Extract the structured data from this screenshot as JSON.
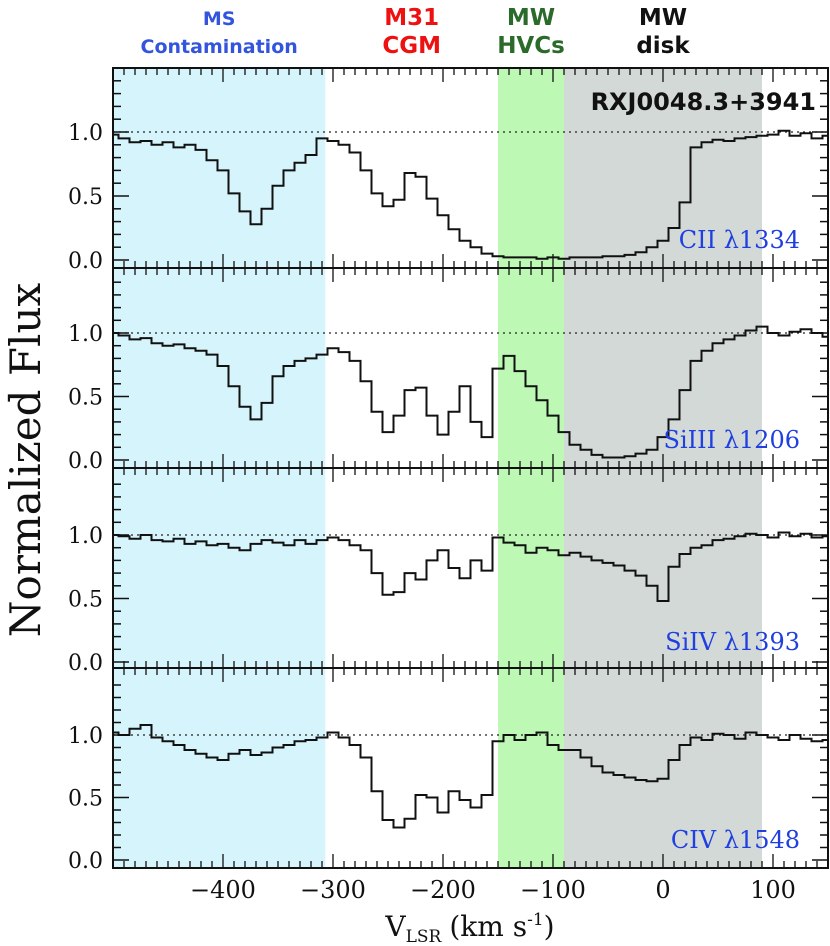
{
  "chart_data": {
    "type": "line",
    "style": "histogram-step",
    "object": "RXJ0048.3+3941",
    "ylabel": "Normalized Flux",
    "xlabel_main": "V",
    "xlabel_sub": "LSR",
    "xlabel_units": "(km s",
    "xlabel_exp": "-1",
    "xlabel_close": ")",
    "xlim": [
      -500,
      150
    ],
    "ylim": [
      -0.05,
      1.5
    ],
    "xticks": [
      -400,
      -300,
      -200,
      -100,
      0,
      100
    ],
    "xtick_labels": [
      "−400",
      "−300",
      "−200",
      "−100",
      "0",
      "100"
    ],
    "yticks": [
      0.0,
      0.5,
      1.0
    ],
    "ytick_labels": [
      "0.0",
      "0.5",
      "1.0"
    ],
    "continuum_level": 1.0,
    "regions": [
      {
        "label_lines": [
          "MS",
          "Contamination"
        ],
        "vmin": -500,
        "vmax": -307,
        "fill": "#d6f4fb",
        "label_color": "#3355dd"
      },
      {
        "label_lines": [
          "M31",
          "CGM"
        ],
        "vmin": -307,
        "vmax": -150,
        "fill": "#ffffff",
        "label_color": "#ee1111"
      },
      {
        "label_lines": [
          "MW",
          "HVCs"
        ],
        "vmin": -150,
        "vmax": -90,
        "fill": "#bdf8b5",
        "label_color": "#2a6a2a"
      },
      {
        "label_lines": [
          "MW",
          "disk"
        ],
        "vmin": -90,
        "vmax": 90,
        "fill": "#d3d9d7",
        "label_color": "#111111"
      }
    ],
    "absorption_fill_color": "#ff1a0a",
    "absorption_fill_range": [
      -307,
      -150
    ],
    "line_color": "#111111",
    "series": [
      {
        "name": "CII λ1334",
        "v": [
          -500,
          -490,
          -480,
          -470,
          -460,
          -450,
          -440,
          -430,
          -420,
          -410,
          -400,
          -390,
          -380,
          -370,
          -360,
          -350,
          -340,
          -330,
          -320,
          -310,
          -300,
          -290,
          -280,
          -270,
          -260,
          -250,
          -240,
          -230,
          -220,
          -210,
          -200,
          -190,
          -180,
          -170,
          -160,
          -150,
          -140,
          -130,
          -120,
          -110,
          -100,
          -90,
          -80,
          -70,
          -60,
          -50,
          -40,
          -30,
          -20,
          -10,
          0,
          10,
          20,
          30,
          40,
          50,
          60,
          70,
          80,
          90,
          100,
          110,
          120,
          130,
          140,
          150
        ],
        "flux": [
          0.98,
          0.95,
          0.92,
          0.93,
          0.9,
          0.92,
          0.88,
          0.9,
          0.86,
          0.78,
          0.7,
          0.52,
          0.38,
          0.28,
          0.4,
          0.58,
          0.7,
          0.76,
          0.82,
          0.95,
          0.93,
          0.9,
          0.84,
          0.7,
          0.52,
          0.42,
          0.47,
          0.68,
          0.65,
          0.48,
          0.35,
          0.24,
          0.15,
          0.1,
          0.05,
          0.03,
          0.02,
          0.02,
          0.02,
          0.01,
          0.02,
          0.01,
          0.02,
          0.02,
          0.02,
          0.03,
          0.03,
          0.04,
          0.06,
          0.1,
          0.15,
          0.25,
          0.45,
          0.88,
          0.92,
          0.94,
          0.93,
          0.95,
          0.96,
          0.97,
          0.98,
          1.01,
          0.97,
          0.99,
          0.95,
          0.97
        ]
      },
      {
        "name": "SiIII λ1206",
        "v": [
          -500,
          -490,
          -480,
          -470,
          -460,
          -450,
          -440,
          -430,
          -420,
          -410,
          -400,
          -390,
          -380,
          -370,
          -360,
          -350,
          -340,
          -330,
          -320,
          -310,
          -300,
          -290,
          -280,
          -270,
          -260,
          -250,
          -240,
          -230,
          -220,
          -210,
          -200,
          -190,
          -180,
          -170,
          -160,
          -150,
          -140,
          -130,
          -120,
          -110,
          -100,
          -90,
          -80,
          -70,
          -60,
          -50,
          -40,
          -30,
          -20,
          -10,
          0,
          10,
          20,
          30,
          40,
          50,
          60,
          70,
          80,
          90,
          100,
          110,
          120,
          130,
          140,
          150
        ],
        "flux": [
          1.0,
          0.98,
          0.95,
          0.96,
          0.92,
          0.9,
          0.91,
          0.88,
          0.86,
          0.83,
          0.74,
          0.58,
          0.42,
          0.32,
          0.45,
          0.66,
          0.74,
          0.78,
          0.8,
          0.83,
          0.88,
          0.85,
          0.78,
          0.62,
          0.38,
          0.22,
          0.35,
          0.55,
          0.57,
          0.35,
          0.2,
          0.38,
          0.58,
          0.3,
          0.18,
          0.72,
          0.82,
          0.7,
          0.58,
          0.47,
          0.35,
          0.22,
          0.12,
          0.08,
          0.04,
          0.02,
          0.02,
          0.03,
          0.05,
          0.08,
          0.18,
          0.32,
          0.55,
          0.78,
          0.86,
          0.92,
          0.95,
          0.98,
          1.02,
          1.05,
          1.0,
          0.98,
          1.01,
          1.03,
          1.0,
          0.97
        ]
      },
      {
        "name": "SiIV λ1393",
        "v": [
          -500,
          -490,
          -480,
          -470,
          -460,
          -450,
          -440,
          -430,
          -420,
          -410,
          -400,
          -390,
          -380,
          -370,
          -360,
          -350,
          -340,
          -330,
          -320,
          -310,
          -300,
          -290,
          -280,
          -270,
          -260,
          -250,
          -240,
          -230,
          -220,
          -210,
          -200,
          -190,
          -180,
          -170,
          -160,
          -150,
          -140,
          -130,
          -120,
          -110,
          -100,
          -90,
          -80,
          -70,
          -60,
          -50,
          -40,
          -30,
          -20,
          -10,
          0,
          10,
          20,
          30,
          40,
          50,
          60,
          70,
          80,
          90,
          100,
          110,
          120,
          130,
          140,
          150
        ],
        "flux": [
          1.0,
          0.99,
          0.97,
          1.0,
          0.96,
          0.95,
          0.97,
          0.93,
          0.95,
          0.92,
          0.93,
          0.9,
          0.88,
          0.93,
          0.96,
          0.94,
          0.92,
          0.96,
          0.93,
          0.96,
          0.98,
          0.96,
          0.92,
          0.88,
          0.7,
          0.53,
          0.55,
          0.7,
          0.65,
          0.8,
          0.88,
          0.74,
          0.66,
          0.8,
          0.72,
          0.98,
          0.94,
          0.92,
          0.86,
          0.9,
          0.88,
          0.84,
          0.86,
          0.83,
          0.8,
          0.78,
          0.76,
          0.72,
          0.68,
          0.6,
          0.48,
          0.75,
          0.85,
          0.9,
          0.92,
          0.96,
          0.97,
          0.99,
          1.01,
          1.0,
          0.98,
          1.02,
          0.99,
          1.01,
          0.98,
          0.99
        ]
      },
      {
        "name": "CIV λ1548",
        "v": [
          -500,
          -490,
          -480,
          -470,
          -460,
          -450,
          -440,
          -430,
          -420,
          -410,
          -400,
          -390,
          -380,
          -370,
          -360,
          -350,
          -340,
          -330,
          -320,
          -310,
          -300,
          -290,
          -280,
          -270,
          -260,
          -250,
          -240,
          -230,
          -220,
          -210,
          -200,
          -190,
          -180,
          -170,
          -160,
          -150,
          -140,
          -130,
          -120,
          -110,
          -100,
          -90,
          -80,
          -70,
          -60,
          -50,
          -40,
          -30,
          -20,
          -10,
          0,
          10,
          20,
          30,
          40,
          50,
          60,
          70,
          80,
          90,
          100,
          110,
          120,
          130,
          140,
          150
        ],
        "flux": [
          1.02,
          1.0,
          1.05,
          1.08,
          0.98,
          0.95,
          0.92,
          0.88,
          0.85,
          0.82,
          0.8,
          0.85,
          0.88,
          0.84,
          0.86,
          0.9,
          0.92,
          0.95,
          0.96,
          0.98,
          1.02,
          0.98,
          0.92,
          0.82,
          0.55,
          0.32,
          0.26,
          0.33,
          0.52,
          0.5,
          0.38,
          0.55,
          0.48,
          0.42,
          0.52,
          0.95,
          1.0,
          0.96,
          1.0,
          1.02,
          0.92,
          0.88,
          0.88,
          0.82,
          0.75,
          0.7,
          0.68,
          0.66,
          0.64,
          0.63,
          0.65,
          0.8,
          0.92,
          0.98,
          0.96,
          1.01,
          1.0,
          0.97,
          1.02,
          1.0,
          0.98,
          0.96,
          1.0,
          0.97,
          0.95,
          0.96
        ]
      }
    ]
  }
}
